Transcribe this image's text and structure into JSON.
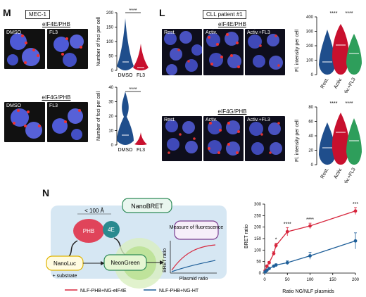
{
  "panel_M": {
    "letter": "M",
    "cell_line": "MEC-1",
    "rows": [
      {
        "title": "eIF4E/PHB",
        "images": [
          "DMSO",
          "FL3"
        ],
        "y_label": "Number of foci per cell",
        "x_ticks": [
          "DMSO",
          "FL3"
        ],
        "y_ticks": [
          "0",
          "50",
          "100",
          "150",
          "200"
        ],
        "sig": "****"
      },
      {
        "title": "eIF4G/PHB",
        "images": [
          "DMSO",
          "FL3"
        ],
        "y_label": "Number of foci per cell",
        "x_ticks": [
          "DMSO",
          "FL3"
        ],
        "y_ticks": [
          "0",
          "10",
          "20",
          "30",
          "40"
        ],
        "sig": "****"
      }
    ]
  },
  "panel_L": {
    "letter": "L",
    "patient": "CLL patient #1",
    "rows": [
      {
        "title": "eIF4E/PHB",
        "images": [
          "Rest.",
          "Activ.",
          "Activ.+FL3"
        ],
        "y_label": "Fl. intensity per cell",
        "x_ticks": [
          "Rest.",
          "Activ.",
          "Activ.+FL3"
        ],
        "y_ticks": [
          "0",
          "100",
          "200",
          "300",
          "400"
        ],
        "sig": [
          "****",
          "****"
        ]
      },
      {
        "title": "eIF4G/PHB",
        "images": [
          "Rest.",
          "Activ.",
          "Activ.+FL3"
        ],
        "y_label": "Fl. intensity per cell",
        "x_ticks": [
          "Rest.",
          "Activ.",
          "Activ.+FL3"
        ],
        "y_ticks": [
          "0",
          "20",
          "40",
          "60",
          "80"
        ],
        "sig": [
          "****",
          "****"
        ]
      }
    ]
  },
  "panel_N": {
    "letter": "N",
    "schematic": {
      "nanobret": "NanoBRET",
      "distance": "< 100 Å",
      "phb": "PHB",
      "fourE": "4E",
      "nanoluc": "NanoLuc",
      "substrate": "+ substrate",
      "neongreen": "NeonGreen",
      "measure": "Measure of fluorescence",
      "mini_ylabel": "BRET ratio",
      "mini_xlabel": "Plasmid ratio"
    },
    "legend": [
      {
        "label": "NLF-PHB+NG-eIF4E",
        "color": "#d7263d"
      },
      {
        "label": "NLF-PHB+NG-HT",
        "color": "#1f5f99"
      }
    ]
  },
  "chart_data": {
    "type": "scatter",
    "xlabel": "Ratio NG/NLF plasmids",
    "ylabel": "BRET ratio",
    "xlim": [
      0,
      200
    ],
    "ylim": [
      0,
      300
    ],
    "x_ticks": [
      0,
      50,
      100,
      150,
      200
    ],
    "y_ticks": [
      0,
      50,
      100,
      150,
      200,
      250,
      300
    ],
    "series": [
      {
        "name": "NLF-PHB+NG-eIF4E",
        "color": "#d7263d",
        "x": [
          1,
          5,
          10,
          20,
          25,
          50,
          100,
          200
        ],
        "y": [
          10,
          30,
          45,
          85,
          120,
          180,
          205,
          270
        ],
        "err": [
          3,
          5,
          6,
          8,
          10,
          18,
          12,
          15
        ]
      },
      {
        "name": "NLF-PHB+NG-HT",
        "color": "#1f5f99",
        "x": [
          1,
          5,
          10,
          20,
          25,
          50,
          100,
          200
        ],
        "y": [
          5,
          12,
          20,
          30,
          35,
          45,
          75,
          140
        ],
        "err": [
          2,
          3,
          3,
          4,
          5,
          8,
          15,
          35
        ]
      }
    ],
    "annotations": [
      {
        "x": 25,
        "text": "*"
      },
      {
        "x": 50,
        "text": "****"
      },
      {
        "x": 100,
        "text": "****"
      },
      {
        "x": 200,
        "text": "***"
      }
    ]
  }
}
